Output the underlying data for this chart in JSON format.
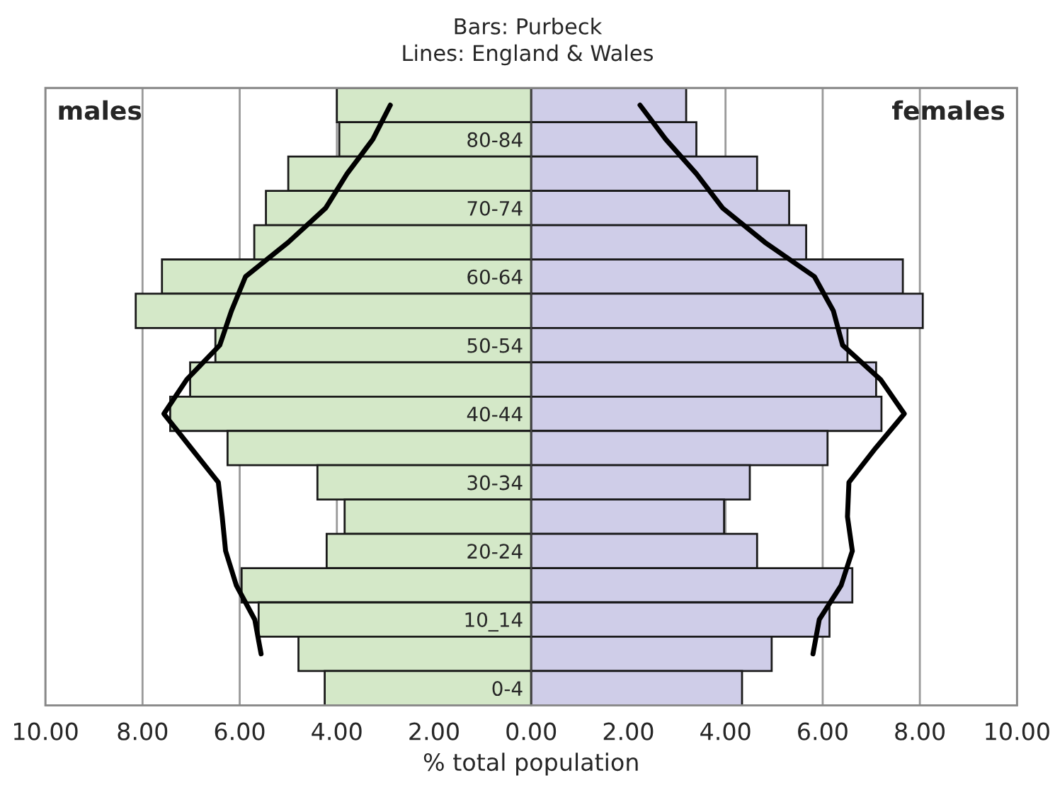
{
  "chart_data": {
    "type": "bar",
    "orientation": "horizontal",
    "title": "Bars: Purbeck",
    "subtitle": "Lines: England & Wales",
    "xlabel": "% total population",
    "categories": [
      null,
      "80-84",
      null,
      "70-74",
      null,
      "60-64",
      null,
      "50-54",
      null,
      "40-44",
      null,
      "30-34",
      null,
      "20-24",
      null,
      "10_14",
      null,
      "0-4"
    ],
    "series": [
      {
        "color": "#d4e8c8",
        "values": [
          -4.0,
          -3.95,
          -5.0,
          -5.46,
          -5.7,
          -7.6,
          -8.14,
          -6.5,
          -7.02,
          -7.43,
          -6.25,
          -4.4,
          -3.84,
          -4.21,
          -5.96,
          -5.61,
          -4.79,
          -4.25
        ]
      },
      {
        "color": "#cfcde8",
        "values": [
          3.19,
          3.4,
          4.65,
          5.31,
          5.66,
          7.65,
          8.06,
          6.51,
          7.1,
          7.21,
          6.1,
          4.5,
          3.97,
          4.65,
          6.61,
          6.14,
          4.95,
          4.34
        ]
      },
      {
        "type": "line",
        "color": "#000000",
        "values": [
          -2.9,
          -3.26,
          -3.79,
          -4.23,
          -5.0,
          -5.88,
          -6.17,
          -6.41,
          -7.09,
          -7.56,
          -7.0,
          -6.44,
          -6.36,
          -6.29,
          -6.07,
          -5.69,
          -5.56,
          null
        ]
      },
      {
        "type": "line",
        "color": "#000000",
        "values": [
          2.24,
          2.77,
          3.4,
          3.94,
          4.81,
          5.83,
          6.22,
          6.41,
          7.19,
          7.68,
          7.09,
          6.54,
          6.51,
          6.61,
          6.38,
          5.93,
          5.8,
          null
        ]
      }
    ],
    "xlim": [
      -10,
      10
    ],
    "xticks": [
      {
        "value": -10,
        "label": "10.00"
      },
      {
        "value": -8,
        "label": "8.00"
      },
      {
        "value": -6,
        "label": "6.00"
      },
      {
        "value": -4,
        "label": "4.00"
      },
      {
        "value": -2,
        "label": "2.00"
      },
      {
        "value": 0,
        "label": "0.00"
      },
      {
        "value": 2,
        "label": "2.00"
      },
      {
        "value": 4,
        "label": "4.00"
      },
      {
        "value": 6,
        "label": "6.00"
      },
      {
        "value": 8,
        "label": "8.00"
      },
      {
        "value": 10,
        "label": "10.00"
      }
    ],
    "grid": "x",
    "stacked": true,
    "legend": false,
    "line_style": "solid",
    "marker": "none",
    "annotations": [
      "males",
      "females"
    ]
  }
}
